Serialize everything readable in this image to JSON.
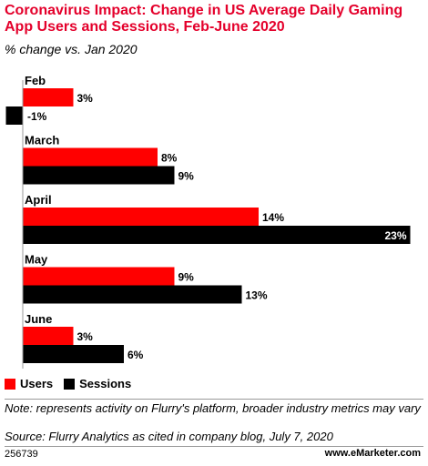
{
  "header": {
    "title": "Coronavirus Impact: Change in US Average Daily Gaming App Users and Sessions, Feb-June 2020",
    "subtitle": "% change vs. Jan 2020"
  },
  "colors": {
    "users": "#ff0000",
    "sessions": "#000000"
  },
  "chart_data": {
    "type": "bar",
    "orientation": "horizontal",
    "title": "Coronavirus Impact: Change in US Average Daily Gaming App Users and Sessions, Feb-June 2020",
    "subtitle": "% change vs. Jan 2020",
    "categories": [
      "Feb",
      "March",
      "April",
      "May",
      "June"
    ],
    "series": [
      {
        "name": "Users",
        "values": [
          3,
          8,
          14,
          9,
          3
        ],
        "labels": [
          "3%",
          "8%",
          "14%",
          "9%",
          "3%"
        ]
      },
      {
        "name": "Sessions",
        "values": [
          -1,
          9,
          23,
          13,
          6
        ],
        "labels": [
          "-1%",
          "9%",
          "23%",
          "13%",
          "6%"
        ]
      }
    ],
    "xlim": [
      -1,
      23
    ],
    "grid": false,
    "legend_position": "bottom-left"
  },
  "legend": {
    "users_label": "Users",
    "sessions_label": "Sessions"
  },
  "footer": {
    "note": "Note: represents activity on Flurry's platform, broader industry metrics may vary",
    "source": "Source: Flurry Analytics as cited in company blog, July 7, 2020",
    "id": "256739",
    "brand": "www.eMarketer.com"
  }
}
